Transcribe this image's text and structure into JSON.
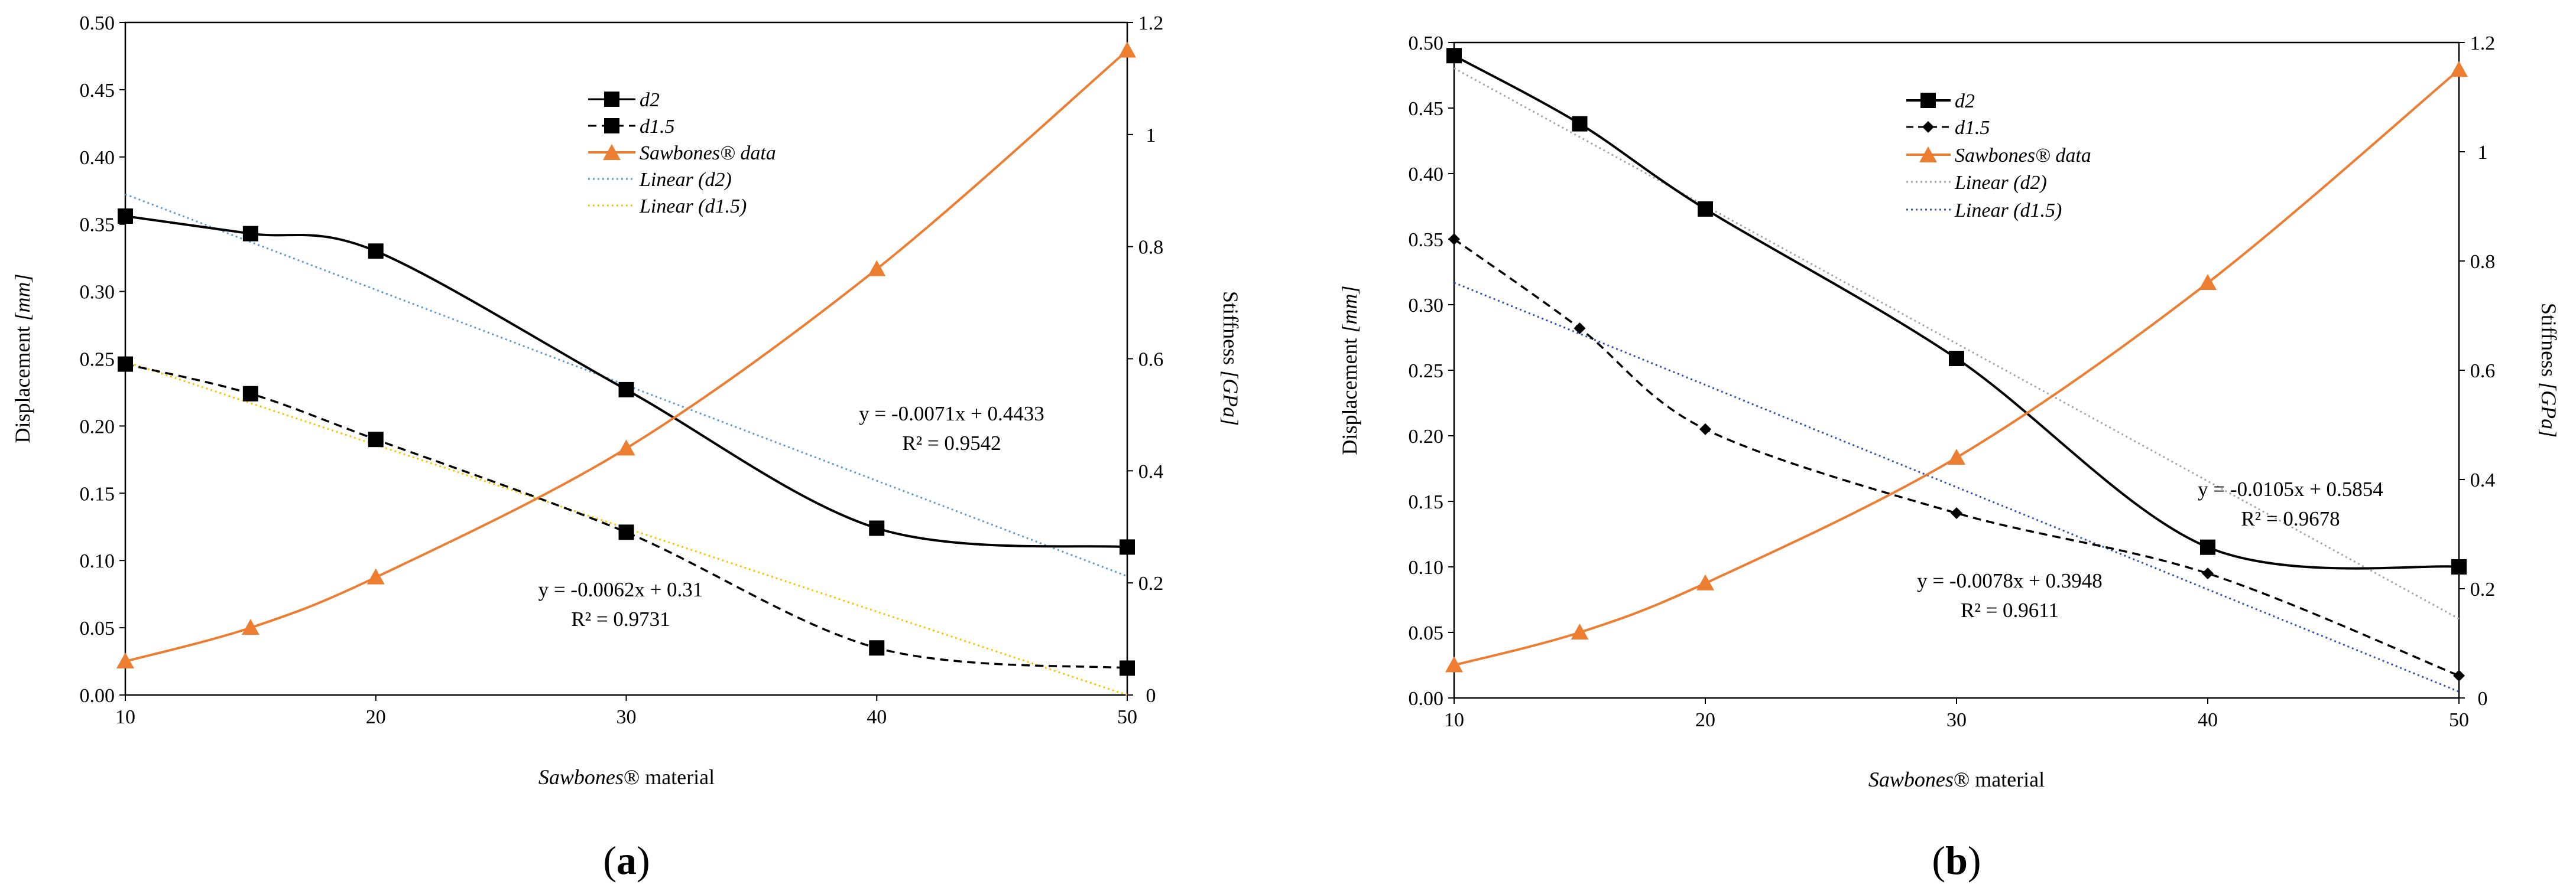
{
  "colors": {
    "d2": "#000000",
    "d15": "#000000",
    "sawbones": "#ED7D31",
    "blue_dotted": "#5B9BD5",
    "yellow_dotted": "#FFC000",
    "gray_dotted": "#A6A6A6",
    "navy_dotted": "#2F54B0",
    "axis": "#000000"
  },
  "chart_data": [
    {
      "type": "line",
      "panel_label": "(a)",
      "panel_letter": "a",
      "xlabel_italic": "Sawbones",
      "xlabel_rest": "® material",
      "ylabel_main": "Displacement",
      "ylabel_unit": "[mm]",
      "y2label_main": "Stiffness",
      "y2label_unit": "[GPa]",
      "x_ticks": [
        "10",
        "20",
        "30",
        "40",
        "50"
      ],
      "y_ticks": [
        "0.00",
        "0.05",
        "0.10",
        "0.15",
        "0.20",
        "0.25",
        "0.30",
        "0.35",
        "0.40",
        "0.45",
        "0.50"
      ],
      "y2_ticks": [
        "0",
        "0.2",
        "0.4",
        "0.6",
        "0.8",
        "1",
        "1.2"
      ],
      "xlim": [
        10,
        50
      ],
      "ylim": [
        0,
        0.5
      ],
      "y2lim": [
        0,
        1.2
      ],
      "legend": [
        {
          "label": "d2",
          "style": "solid-square",
          "color": "#000000"
        },
        {
          "label": "d1.5",
          "style": "dashed-square",
          "color": "#000000"
        },
        {
          "label": "Sawbones® data",
          "style": "solid-triangle",
          "color": "#ED7D31"
        },
        {
          "label": "Linear (d2)",
          "style": "dotted",
          "color": "#5B9BD5"
        },
        {
          "label": "Linear (d1.5)",
          "style": "dotted",
          "color": "#FFC000"
        }
      ],
      "series": [
        {
          "name": "d2",
          "axis": "left",
          "style": "solid",
          "marker": "square",
          "color": "#000000",
          "x": [
            10,
            15,
            20,
            30,
            40,
            50
          ],
          "values": [
            0.356,
            0.343,
            0.33,
            0.227,
            0.124,
            0.11
          ]
        },
        {
          "name": "d1.5",
          "axis": "left",
          "style": "dashed",
          "marker": "square",
          "color": "#000000",
          "x": [
            10,
            15,
            20,
            30,
            40,
            50
          ],
          "values": [
            0.246,
            0.224,
            0.19,
            0.121,
            0.035,
            0.02
          ]
        },
        {
          "name": "Sawbones® data",
          "axis": "right",
          "style": "solid",
          "marker": "triangle",
          "color": "#ED7D31",
          "x": [
            10,
            15,
            20,
            30,
            40,
            50
          ],
          "values": [
            0.06,
            0.12,
            0.21,
            0.44,
            0.76,
            1.15
          ]
        }
      ],
      "trendlines": [
        {
          "name": "Linear (d2)",
          "slope": -0.0071,
          "intercept": 0.4433,
          "color": "#5B9BD5"
        },
        {
          "name": "Linear (d1.5)",
          "slope": -0.0062,
          "intercept": 0.31,
          "color": "#FFC000"
        }
      ],
      "annotations": [
        {
          "eq": "y = -0.0071x + 0.4433",
          "r2": "R² = 0.9542"
        },
        {
          "eq": "y = -0.0062x + 0.31",
          "r2": "R² = 0.9731"
        }
      ]
    },
    {
      "type": "line",
      "panel_label": "(b)",
      "panel_letter": "b",
      "xlabel_italic": "Sawbones",
      "xlabel_rest": "® material",
      "ylabel_main": "Displacement",
      "ylabel_unit": "[mm]",
      "y2label_main": "Stiffness",
      "y2label_unit": "[GPa]",
      "x_ticks": [
        "10",
        "20",
        "30",
        "40",
        "50"
      ],
      "y_ticks": [
        "0.00",
        "0.05",
        "0.10",
        "0.15",
        "0.20",
        "0.25",
        "0.30",
        "0.35",
        "0.40",
        "0.45",
        "0.50"
      ],
      "y2_ticks": [
        "0",
        "0.2",
        "0.4",
        "0.6",
        "0.8",
        "1",
        "1.2"
      ],
      "xlim": [
        10,
        50
      ],
      "ylim": [
        0,
        0.5
      ],
      "y2lim": [
        0,
        1.2
      ],
      "legend": [
        {
          "label": "d2",
          "style": "solid-square",
          "color": "#000000"
        },
        {
          "label": "d1.5",
          "style": "dashed-diamond",
          "color": "#000000"
        },
        {
          "label": "Sawbones® data",
          "style": "solid-triangle",
          "color": "#ED7D31"
        },
        {
          "label": "Linear (d2)",
          "style": "dotted",
          "color": "#A6A6A6"
        },
        {
          "label": "Linear (d1.5)",
          "style": "dotted",
          "color": "#2F54B0"
        }
      ],
      "series": [
        {
          "name": "d2",
          "axis": "left",
          "style": "solid",
          "marker": "square",
          "color": "#000000",
          "x": [
            10,
            15,
            20,
            30,
            40,
            50
          ],
          "values": [
            0.49,
            0.438,
            0.373,
            0.259,
            0.115,
            0.1
          ]
        },
        {
          "name": "d1.5",
          "axis": "left",
          "style": "dashed",
          "marker": "diamond",
          "color": "#000000",
          "x": [
            10,
            15,
            20,
            30,
            40,
            50
          ],
          "values": [
            0.35,
            0.282,
            0.205,
            0.141,
            0.095,
            0.017
          ]
        },
        {
          "name": "Sawbones® data",
          "axis": "right",
          "style": "solid",
          "marker": "triangle",
          "color": "#ED7D31",
          "x": [
            10,
            15,
            20,
            30,
            40,
            50
          ],
          "values": [
            0.06,
            0.12,
            0.21,
            0.44,
            0.76,
            1.15
          ]
        }
      ],
      "trendlines": [
        {
          "name": "Linear (d2)",
          "slope": -0.0105,
          "intercept": 0.5854,
          "color": "#A6A6A6"
        },
        {
          "name": "Linear (d1.5)",
          "slope": -0.0078,
          "intercept": 0.3948,
          "color": "#2F54B0"
        }
      ],
      "annotations": [
        {
          "eq": "y = -0.0105x + 0.5854",
          "r2": "R² = 0.9678"
        },
        {
          "eq": "y = -0.0078x + 0.3948",
          "r2": "R² = 0.9611"
        }
      ]
    }
  ]
}
